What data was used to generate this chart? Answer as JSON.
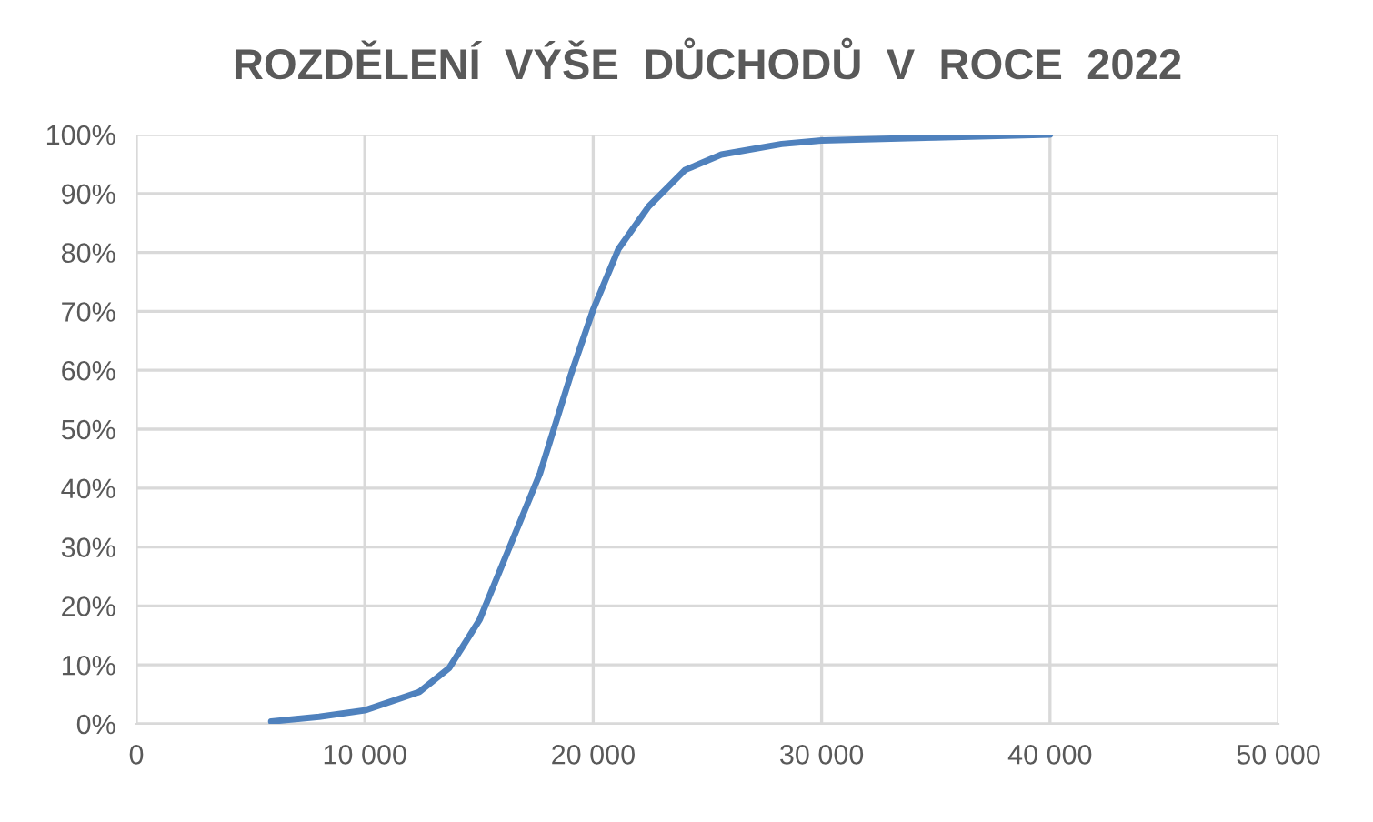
{
  "chart_data": {
    "type": "line",
    "title": "ROZDĚLENÍ  VÝŠE  DŮCHODŮ  V  ROCE  2022",
    "x": [
      5900,
      8000,
      10000,
      12380,
      13700,
      15030,
      16350,
      17670,
      19000,
      20000,
      21110,
      22430,
      24020,
      25610,
      28250,
      30000,
      35000,
      40000
    ],
    "series": [
      {
        "color": "#4f81bd",
        "values": [
          0.4,
          1.2,
          2.3,
          5.4,
          9.5,
          17.7,
          30.1,
          42.5,
          59,
          70.3,
          80.6,
          87.8,
          94,
          96.6,
          98.4,
          99,
          99.5,
          100
        ]
      }
    ],
    "xlim": [
      0,
      50000
    ],
    "xticks": [
      0,
      {
        "value": 10000,
        "label": "10 000"
      },
      {
        "value": 20000,
        "label": "20 000"
      },
      {
        "value": 30000,
        "label": "30 000"
      },
      {
        "value": 40000,
        "label": "40 000"
      },
      {
        "value": 50000,
        "label": "50 000"
      }
    ],
    "ylim": [
      0,
      100
    ],
    "yticks": [
      {
        "value": 0,
        "label": "0%"
      },
      {
        "value": 10,
        "label": "10%"
      },
      {
        "value": 20,
        "label": "20%"
      },
      {
        "value": 30,
        "label": "30%"
      },
      {
        "value": 40,
        "label": "40%"
      },
      {
        "value": 50,
        "label": "50%"
      },
      {
        "value": 60,
        "label": "60%"
      },
      {
        "value": 70,
        "label": "70%"
      },
      {
        "value": 80,
        "label": "80%"
      },
      {
        "value": 90,
        "label": "90%"
      },
      {
        "value": 100,
        "label": "100%"
      }
    ],
    "grid": true,
    "legend": false
  }
}
